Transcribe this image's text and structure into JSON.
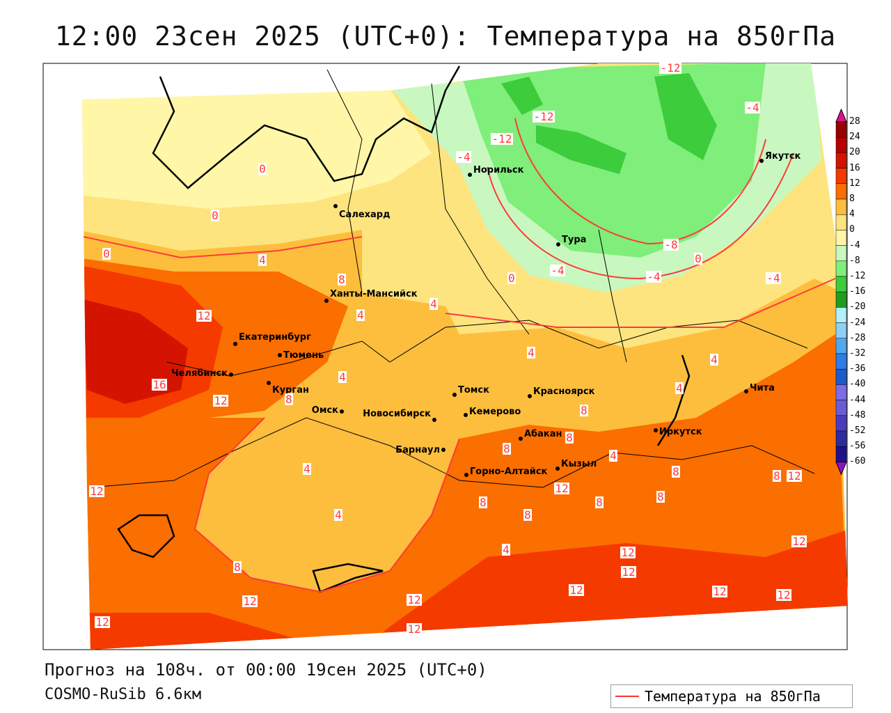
{
  "title": "12:00 23сен 2025 (UTC+0): Температура на 850гПа",
  "forecast_line": "Прогноз на 108ч. от 00:00 19сен 2025 (UTC+0)",
  "model_line": "COSMO-RuSib 6.6км",
  "legend": {
    "label": "Температура на 850гПа",
    "line_color": "#ff3333"
  },
  "colorbar": {
    "ticks": [
      "28",
      "24",
      "20",
      "16",
      "12",
      "8",
      "4",
      "0",
      "-4",
      "-8",
      "-12",
      "-16",
      "-20",
      "-24",
      "-28",
      "-32",
      "-36",
      "-40",
      "-44",
      "-48",
      "-52",
      "-56",
      "-60"
    ],
    "colors": [
      "#990000",
      "#b80000",
      "#d41400",
      "#f53a00",
      "#fb6e00",
      "#fdbe3e",
      "#fde47e",
      "#fff6a8",
      "#c8f8c0",
      "#80ee7a",
      "#3ccc3c",
      "#1e9e1e",
      "#b0f0f8",
      "#90d0f8",
      "#50a8f0",
      "#2c7ee8",
      "#1c5ccc",
      "#7c6ce8",
      "#6a5cd8",
      "#4a3cc0",
      "#2e2aa0",
      "#20108c"
    ],
    "top_arrow": "#e0108c",
    "bottom_arrow": "#8c10c0"
  },
  "cities": [
    "Якутск",
    "Норильск",
    "Салехард",
    "Тура",
    "Ханты-Мансийск",
    "Екатеринбург",
    "Тюмень",
    "Челябинск",
    "Курган",
    "Омск",
    "Новосибирск",
    "Томск",
    "Красноярск",
    "Кемерово",
    "Барнаул",
    "Абакан",
    "Горно-Алтайск",
    "Кызыл",
    "Иркутск",
    "Чита"
  ],
  "contour_labels": [
    "-12",
    "-12",
    "-12",
    "-4",
    "-4",
    "0",
    "0",
    "0",
    "-8",
    "-4",
    "-4",
    "0",
    "-4",
    "0",
    "8",
    "4",
    "4",
    "8",
    "12",
    "4",
    "4",
    "4",
    "4",
    "4",
    "16",
    "12",
    "8",
    "4",
    "4",
    "4",
    "8",
    "8",
    "8",
    "12",
    "8",
    "8",
    "12",
    "8",
    "8",
    "8",
    "12",
    "12",
    "12",
    "12",
    "12",
    "12",
    "12",
    "12",
    "12",
    "12",
    "12",
    "8",
    "4"
  ]
}
